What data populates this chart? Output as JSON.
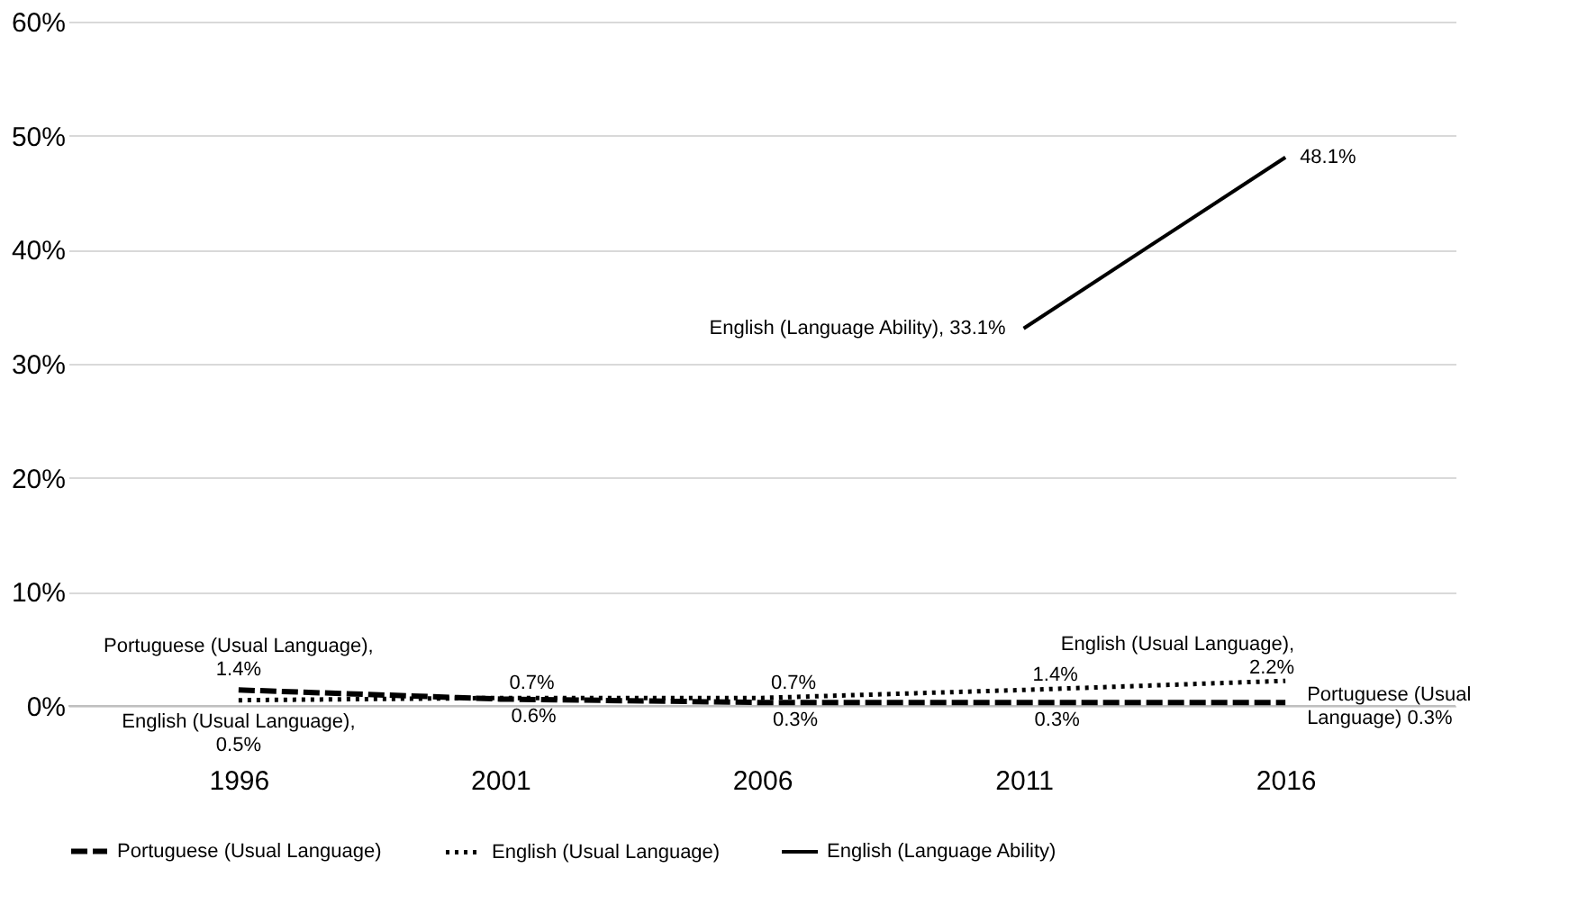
{
  "chart_data": {
    "type": "line",
    "categories": [
      "1996",
      "2001",
      "2006",
      "2011",
      "2016"
    ],
    "ylim": [
      0,
      60
    ],
    "yticks": [
      {
        "value": 0,
        "label": "0%"
      },
      {
        "value": 10,
        "label": "10%"
      },
      {
        "value": 20,
        "label": "20%"
      },
      {
        "value": 30,
        "label": "30%"
      },
      {
        "value": 40,
        "label": "40%"
      },
      {
        "value": 50,
        "label": "50%"
      },
      {
        "value": 60,
        "label": "60%"
      }
    ],
    "grid": "y",
    "legend": "bottom",
    "marker": "none",
    "series": [
      {
        "name": "Portuguese (Usual Language)",
        "color": "#000000",
        "line_style": "dashed",
        "values": [
          1.4,
          0.6,
          0.3,
          0.3,
          0.3
        ],
        "value_labels": [
          "Portuguese (Usual Language),\n1.4%",
          "0.6%",
          "0.3%",
          "0.3%",
          "Portuguese (Usual\nLanguage) 0.3%"
        ]
      },
      {
        "name": "English (Usual Language)",
        "color": "#000000",
        "line_style": "dotted",
        "values": [
          0.5,
          0.7,
          0.7,
          1.4,
          2.2
        ],
        "value_labels": [
          "English (Usual Language),\n0.5%",
          "0.7%",
          "0.7%",
          "1.4%",
          "English (Usual Language),\n2.2%"
        ]
      },
      {
        "name": "English (Language Ability)",
        "color": "#000000",
        "line_style": "solid",
        "values": [
          null,
          null,
          null,
          33.1,
          48.1
        ],
        "value_labels": [
          null,
          null,
          null,
          "English (Language Ability), 33.1%",
          "48.1%"
        ]
      }
    ]
  }
}
